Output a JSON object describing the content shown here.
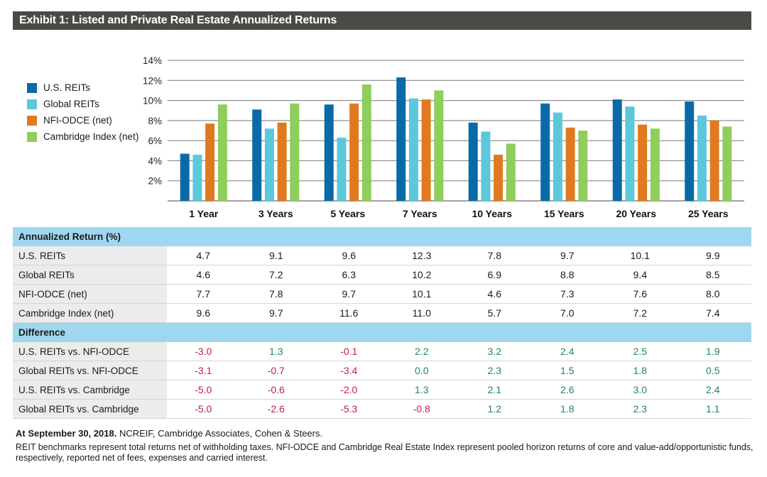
{
  "title": "Exhibit 1: Listed and Private Real Estate Annualized Returns",
  "colors": {
    "us_reits": "#0a6aa8",
    "global_reits": "#5cc8dc",
    "nfi_odce": "#e07a20",
    "cambridge": "#8fcd5c",
    "negative": "#c21d4a",
    "positive": "#1a8a5a",
    "section_bg": "#9fd8ee"
  },
  "chart_data": {
    "type": "bar",
    "categories": [
      "1 Year",
      "3 Years",
      "5 Years",
      "7 Years",
      "10 Years",
      "15 Years",
      "20 Years",
      "25 Years"
    ],
    "series": [
      {
        "name": "U.S. REITs",
        "values": [
          4.7,
          9.1,
          9.6,
          12.3,
          7.8,
          9.7,
          10.1,
          9.9
        ]
      },
      {
        "name": "Global REITs",
        "values": [
          4.6,
          7.2,
          6.3,
          10.2,
          6.9,
          8.8,
          9.4,
          8.5
        ]
      },
      {
        "name": "NFI-ODCE (net)",
        "values": [
          7.7,
          7.8,
          9.7,
          10.1,
          4.6,
          7.3,
          7.6,
          8.0
        ]
      },
      {
        "name": "Cambridge Index (net)",
        "values": [
          9.6,
          9.7,
          11.6,
          11.0,
          5.7,
          7.0,
          7.2,
          7.4
        ]
      }
    ],
    "yticks": [
      "2%",
      "4%",
      "6%",
      "8%",
      "10%",
      "12%",
      "14%"
    ],
    "ylim": [
      0,
      14
    ],
    "grid": true,
    "legend_position": "left"
  },
  "table": {
    "returns_header": "Annualized Return (%)",
    "returns_rows": [
      {
        "label": "U.S. REITs",
        "values": [
          "4.7",
          "9.1",
          "9.6",
          "12.3",
          "7.8",
          "9.7",
          "10.1",
          "9.9"
        ]
      },
      {
        "label": "Global REITs",
        "values": [
          "4.6",
          "7.2",
          "6.3",
          "10.2",
          "6.9",
          "8.8",
          "9.4",
          "8.5"
        ]
      },
      {
        "label": "NFI-ODCE (net)",
        "values": [
          "7.7",
          "7.8",
          "9.7",
          "10.1",
          "4.6",
          "7.3",
          "7.6",
          "8.0"
        ]
      },
      {
        "label": "Cambridge Index (net)",
        "values": [
          "9.6",
          "9.7",
          "11.6",
          "11.0",
          "5.7",
          "7.0",
          "7.2",
          "7.4"
        ]
      }
    ],
    "diff_header": "Difference",
    "diff_rows": [
      {
        "label": "U.S. REITs vs. NFI-ODCE",
        "values": [
          "-3.0",
          "1.3",
          "-0.1",
          "2.2",
          "3.2",
          "2.4",
          "2.5",
          "1.9"
        ]
      },
      {
        "label": "Global REITs vs. NFI-ODCE",
        "values": [
          "-3.1",
          "-0.7",
          "-3.4",
          "0.0",
          "2.3",
          "1.5",
          "1.8",
          "0.5"
        ]
      },
      {
        "label": "U.S. REITs vs. Cambridge",
        "values": [
          "-5.0",
          "-0.6",
          "-2.0",
          "1.3",
          "2.1",
          "2.6",
          "3.0",
          "2.4"
        ]
      },
      {
        "label": "Global REITs vs. Cambridge",
        "values": [
          "-5.0",
          "-2.6",
          "-5.3",
          "-0.8",
          "1.2",
          "1.8",
          "2.3",
          "1.1"
        ]
      }
    ]
  },
  "footnote": {
    "date_bold": "At September 30, 2018.",
    "sources": " NCREIF, Cambridge Associates, Cohen & Steers.",
    "note": "REIT benchmarks represent total returns net of withholding taxes. NFI-ODCE and Cambridge Real Estate Index represent pooled horizon returns of core and value-add/opportunistic funds, respectively, reported net of fees, expenses and carried interest."
  }
}
